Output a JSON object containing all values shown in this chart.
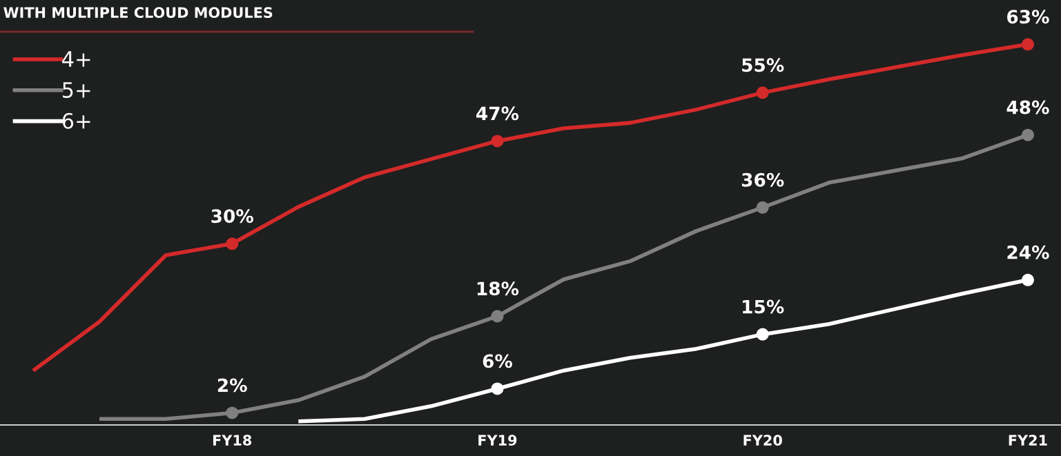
{
  "chart_data": {
    "type": "line",
    "title": "WITH MULTIPLE CLOUD MODULES",
    "categories": [
      null,
      null,
      null,
      "FY18",
      null,
      null,
      null,
      "FY19",
      null,
      null,
      null,
      "FY20",
      null,
      null,
      null,
      "FY21"
    ],
    "series": [
      {
        "name": "4+",
        "color": "#d42a2a",
        "values": [
          9.0,
          17.1,
          28.1,
          30,
          36.1,
          41.0,
          44.0,
          47,
          49.1,
          50.0,
          52.2,
          55,
          57.2,
          59.2,
          61.2,
          63
        ],
        "value_labels": [
          null,
          null,
          null,
          "30%",
          null,
          null,
          null,
          "47%",
          null,
          null,
          null,
          "55%",
          null,
          null,
          null,
          "63%"
        ]
      },
      {
        "name": "5+",
        "color": "#808080",
        "values": [
          null,
          1.0,
          1.0,
          2,
          4.1,
          8.0,
          14.2,
          18,
          24.1,
          27.1,
          32.1,
          36,
          40.1,
          42.1,
          44.1,
          48
        ],
        "value_labels": [
          null,
          null,
          null,
          "2%",
          null,
          null,
          null,
          "18%",
          null,
          null,
          null,
          "36%",
          null,
          null,
          null,
          "48%"
        ]
      },
      {
        "name": "6+",
        "color": "#ffffff",
        "values": [
          null,
          null,
          null,
          null,
          0.6,
          1.0,
          3.1,
          6,
          9.0,
          11.1,
          12.6,
          15,
          16.7,
          19.2,
          21.7,
          24
        ],
        "value_labels": [
          null,
          null,
          null,
          null,
          null,
          null,
          null,
          "6%",
          null,
          null,
          null,
          "15%",
          null,
          null,
          null,
          "24%"
        ]
      }
    ],
    "ylim": [
      0,
      70
    ],
    "tick_labels": "x",
    "legend": "top left",
    "grid": false,
    "line_style": "solid"
  }
}
